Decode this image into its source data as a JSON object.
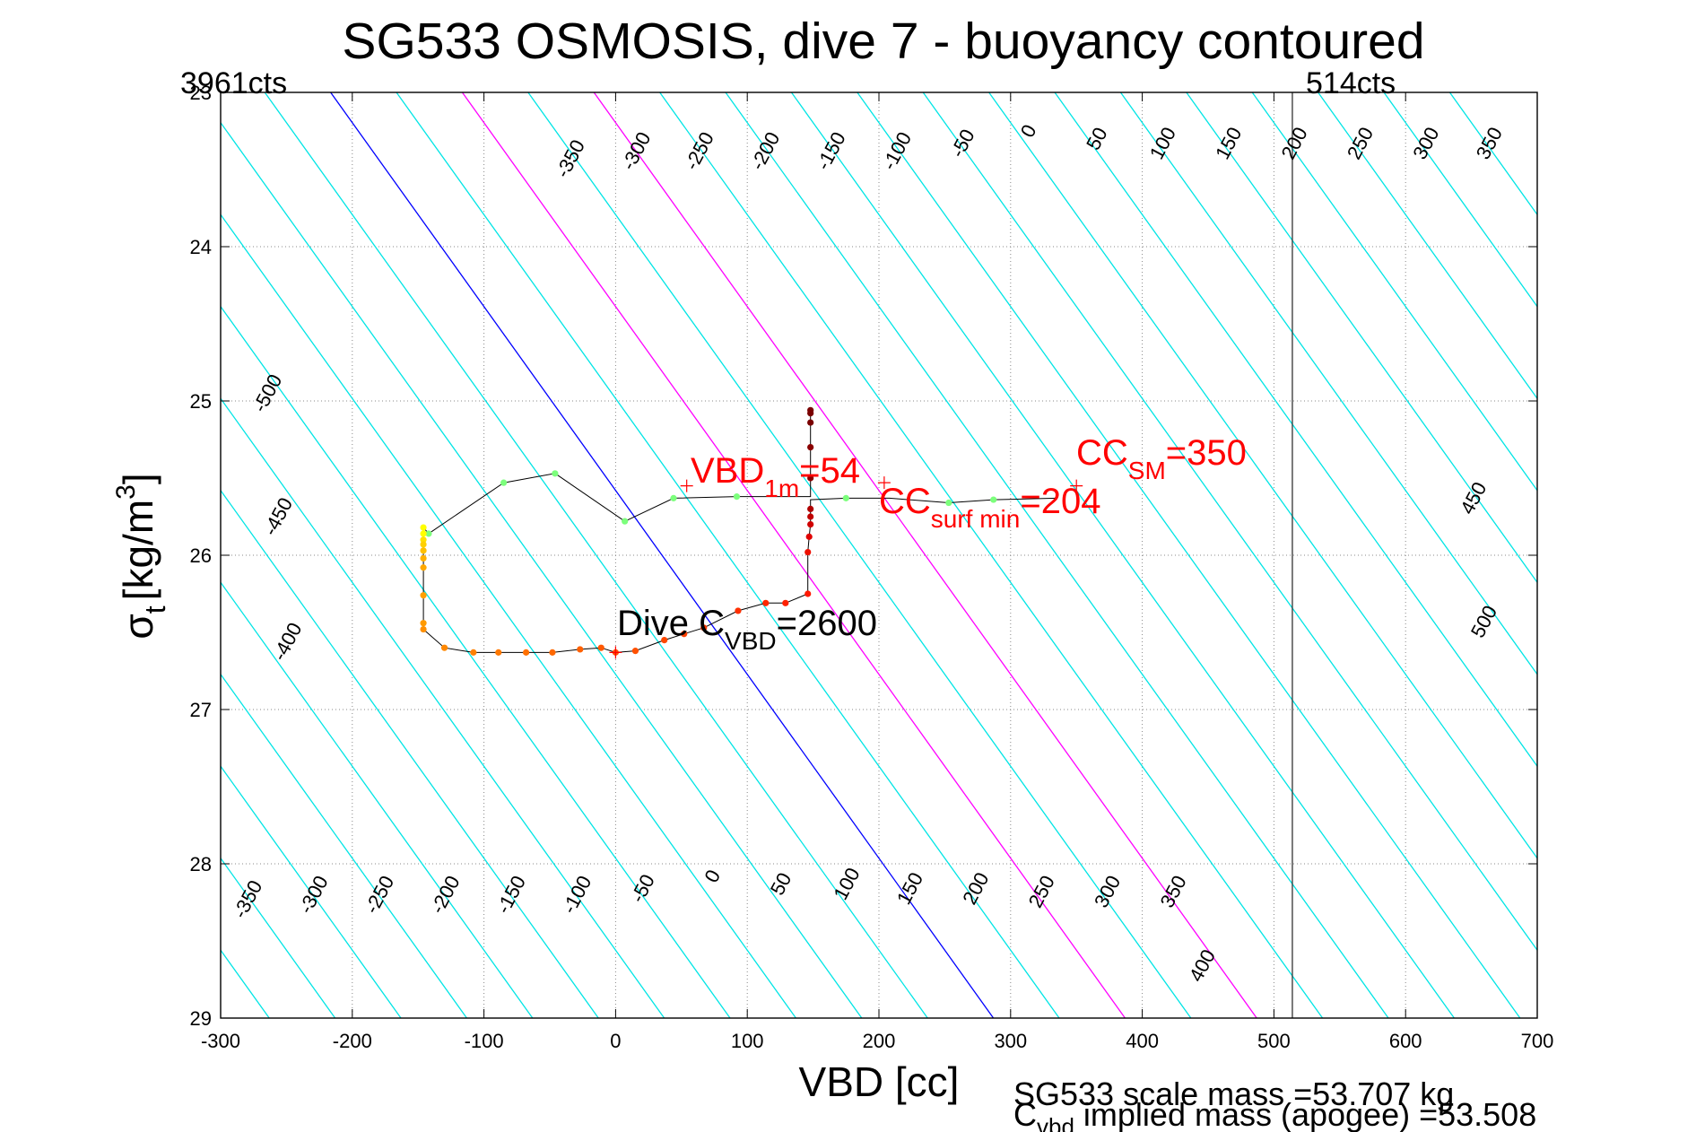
{
  "chart_data": {
    "type": "line",
    "title": "SG533 OSMOSIS, dive 7 - buoyancy contoured",
    "xlabel": "VBD [cc]",
    "ylabel_main": "σ",
    "ylabel_sub": "t",
    "ylabel_unit": "[kg/m",
    "ylabel_sup": "3",
    "ylabel_close": "]",
    "xlim": [
      -300,
      700
    ],
    "ylim": [
      23,
      29
    ],
    "y_reversed": true,
    "grid": true,
    "x_ticks": [
      "-300",
      "-200",
      "-100",
      "0",
      "100",
      "200",
      "300",
      "400",
      "500",
      "600",
      "700"
    ],
    "x_tick_values": [
      -300,
      -200,
      -100,
      0,
      100,
      200,
      300,
      400,
      500,
      600,
      700
    ],
    "y_ticks": [
      "23",
      "24",
      "25",
      "26",
      "27",
      "28",
      "29"
    ],
    "y_tick_values": [
      23,
      24,
      25,
      26,
      27,
      28,
      29
    ],
    "contour_levels": [
      -650,
      -600,
      -550,
      -500,
      -450,
      -400,
      -350,
      -300,
      -250,
      -200,
      -150,
      -100,
      -50,
      0,
      50,
      100,
      150,
      200,
      250,
      300,
      350,
      400,
      450,
      500,
      550,
      600,
      650,
      700,
      750,
      800,
      850
    ],
    "contour_colors": {
      "default": "#00e5e5",
      "zero": "#0000ff",
      "special": "#ff00ff"
    },
    "special_contours": [
      100,
      200
    ],
    "contour_labels": [
      {
        "text": "-350",
        "level": -350,
        "x": -30,
        "y": 23.45
      },
      {
        "text": "-300",
        "level": -300,
        "x": 20,
        "y": 23.4
      },
      {
        "text": "-250",
        "level": -250,
        "x": 68,
        "y": 23.4
      },
      {
        "text": "-200",
        "level": -200,
        "x": 118,
        "y": 23.4
      },
      {
        "text": "-150",
        "level": -150,
        "x": 168,
        "y": 23.4
      },
      {
        "text": "-100",
        "level": -100,
        "x": 218,
        "y": 23.4
      },
      {
        "text": "-50",
        "level": -50,
        "x": 268,
        "y": 23.35
      },
      {
        "text": "0",
        "level": 0,
        "x": 318,
        "y": 23.27
      },
      {
        "text": "50",
        "level": 50,
        "x": 370,
        "y": 23.32
      },
      {
        "text": "100",
        "level": 100,
        "x": 420,
        "y": 23.35
      },
      {
        "text": "150",
        "level": 150,
        "x": 470,
        "y": 23.35
      },
      {
        "text": "200",
        "level": 200,
        "x": 520,
        "y": 23.35
      },
      {
        "text": "250",
        "level": 250,
        "x": 570,
        "y": 23.35
      },
      {
        "text": "300",
        "level": 300,
        "x": 620,
        "y": 23.35
      },
      {
        "text": "350",
        "level": 350,
        "x": 668,
        "y": 23.35
      },
      {
        "text": "-500",
        "level": -500,
        "x": -260,
        "y": 24.97
      },
      {
        "text": "-450",
        "level": -450,
        "x": -252,
        "y": 25.77
      },
      {
        "text": "-400",
        "level": -400,
        "x": -245,
        "y": 26.58
      },
      {
        "text": "450",
        "level": 450,
        "x": 656,
        "y": 25.65
      },
      {
        "text": "500",
        "level": 500,
        "x": 664,
        "y": 26.45
      },
      {
        "text": "-350",
        "level": -350,
        "x": -275,
        "y": 28.25
      },
      {
        "text": "-300",
        "level": -300,
        "x": -225,
        "y": 28.22
      },
      {
        "text": "-250",
        "level": -250,
        "x": -175,
        "y": 28.22
      },
      {
        "text": "-200",
        "level": -200,
        "x": -125,
        "y": 28.22
      },
      {
        "text": "-150",
        "level": -150,
        "x": -75,
        "y": 28.22
      },
      {
        "text": "-100",
        "level": -100,
        "x": -25,
        "y": 28.22
      },
      {
        "text": "-50",
        "level": -50,
        "x": 25,
        "y": 28.18
      },
      {
        "text": "0",
        "level": 0,
        "x": 78,
        "y": 28.1
      },
      {
        "text": "50",
        "level": 50,
        "x": 130,
        "y": 28.15
      },
      {
        "text": "100",
        "level": 100,
        "x": 180,
        "y": 28.15
      },
      {
        "text": "150",
        "level": 150,
        "x": 228,
        "y": 28.18
      },
      {
        "text": "200",
        "level": 200,
        "x": 278,
        "y": 28.18
      },
      {
        "text": "250",
        "level": 250,
        "x": 328,
        "y": 28.2
      },
      {
        "text": "300",
        "level": 300,
        "x": 378,
        "y": 28.2
      },
      {
        "text": "350",
        "level": 350,
        "x": 428,
        "y": 28.2
      },
      {
        "text": "400",
        "level": 400,
        "x": 450,
        "y": 28.68
      }
    ],
    "vertical_line_x": 514,
    "corner_labels": {
      "left": "3961cts",
      "right": "514cts"
    },
    "series": [
      {
        "kind": "glider-path",
        "color": "#000000",
        "points": [
          {
            "x": 148,
            "y": 25.06,
            "c": "#7a0000"
          },
          {
            "x": 148,
            "y": 25.08,
            "c": "#7a0000"
          },
          {
            "x": 148,
            "y": 25.14,
            "c": "#7a0000"
          },
          {
            "x": 148,
            "y": 25.3,
            "c": "#8a0000"
          },
          {
            "x": 148,
            "y": 25.5,
            "c": "#8a0000"
          },
          {
            "x": 148,
            "y": 25.62
          },
          {
            "x": 92,
            "y": 25.62,
            "c": "#7cff7c"
          },
          {
            "x": 44,
            "y": 25.63,
            "c": "#7cff7c"
          },
          {
            "x": 7,
            "y": 25.78,
            "c": "#7cff7c"
          },
          {
            "x": -46,
            "y": 25.47,
            "c": "#7cff7c"
          },
          {
            "x": -85,
            "y": 25.53,
            "c": "#7cff7c"
          },
          {
            "x": -142,
            "y": 25.86,
            "c": "#7cff7c"
          },
          {
            "x": -146,
            "y": 25.82,
            "c": "#ffff00"
          },
          {
            "x": -146,
            "y": 25.86,
            "c": "#ffff00"
          },
          {
            "x": -146,
            "y": 25.9,
            "c": "#ffe000"
          },
          {
            "x": -146,
            "y": 25.93,
            "c": "#ffd000"
          },
          {
            "x": -146,
            "y": 25.97,
            "c": "#ffc000"
          },
          {
            "x": -146,
            "y": 26.02,
            "c": "#ffb000"
          },
          {
            "x": -146,
            "y": 26.08,
            "c": "#ffa800"
          },
          {
            "x": -146,
            "y": 26.26,
            "c": "#ffa000"
          },
          {
            "x": -146,
            "y": 26.44,
            "c": "#ff9a00"
          },
          {
            "x": -146,
            "y": 26.48,
            "c": "#ff9000"
          },
          {
            "x": -130,
            "y": 26.6,
            "c": "#ff8800"
          },
          {
            "x": -108,
            "y": 26.63,
            "c": "#ff8000"
          },
          {
            "x": -89,
            "y": 26.63,
            "c": "#ff7800"
          },
          {
            "x": -68,
            "y": 26.63,
            "c": "#ff7000"
          },
          {
            "x": -48,
            "y": 26.63,
            "c": "#ff6800"
          },
          {
            "x": -27,
            "y": 26.61,
            "c": "#ff6000"
          },
          {
            "x": -11,
            "y": 26.6,
            "c": "#ff5800"
          },
          {
            "x": 0,
            "y": 26.63,
            "c": "#ff5000"
          },
          {
            "x": 15,
            "y": 26.62,
            "c": "#ff5000"
          },
          {
            "x": 37,
            "y": 26.55,
            "c": "#ff4800"
          },
          {
            "x": 52,
            "y": 26.51,
            "c": "#ff4000"
          },
          {
            "x": 67,
            "y": 26.47,
            "c": "#ff3800"
          },
          {
            "x": 93,
            "y": 26.36,
            "c": "#ff3000"
          },
          {
            "x": 114,
            "y": 26.31,
            "c": "#ff2800"
          },
          {
            "x": 129,
            "y": 26.31,
            "c": "#ff2000"
          },
          {
            "x": 146,
            "y": 26.25,
            "c": "#ff1800"
          },
          {
            "x": 146,
            "y": 25.98,
            "c": "#ee1000"
          },
          {
            "x": 147,
            "y": 25.88,
            "c": "#e00000"
          },
          {
            "x": 148,
            "y": 25.8,
            "c": "#d00000"
          },
          {
            "x": 148,
            "y": 25.75,
            "c": "#c00000"
          },
          {
            "x": 148,
            "y": 25.7,
            "c": "#b00000"
          },
          {
            "x": 148,
            "y": 25.64
          },
          {
            "x": 175,
            "y": 25.63,
            "c": "#7cff7c"
          },
          {
            "x": 208,
            "y": 25.63
          },
          {
            "x": 253,
            "y": 25.66,
            "c": "#7cff7c"
          },
          {
            "x": 287,
            "y": 25.64,
            "c": "#7cff7c"
          },
          {
            "x": 335,
            "y": 25.63
          }
        ]
      }
    ],
    "annotations": [
      {
        "kind": "marker",
        "x": 54,
        "y": 25.55
      },
      {
        "kind": "marker",
        "x": 204,
        "y": 25.53
      },
      {
        "kind": "marker",
        "x": 350,
        "y": 25.55
      },
      {
        "kind": "marker",
        "x": 0,
        "y": 26.63
      }
    ],
    "labels": {
      "vbd1m": {
        "main": "VBD",
        "sub": "1m",
        "tail": "=54",
        "color": "#ff0000"
      },
      "ccsurf": {
        "main": "CC",
        "sub": "surf min",
        "tail": "=204",
        "color": "#ff0000"
      },
      "ccsm": {
        "main": "CC",
        "sub": "SM",
        "tail": "=350",
        "color": "#ff0000"
      },
      "divec": {
        "main": "Dive C",
        "sub": "VBD",
        "tail": "=2600",
        "color": "#000000"
      }
    },
    "footer": {
      "line1": "SG533 scale mass =53.707 kg",
      "line2_main": "C",
      "line2_sub": "vbd",
      "line2_tail": " implied mass (apogee) =53.508"
    }
  }
}
